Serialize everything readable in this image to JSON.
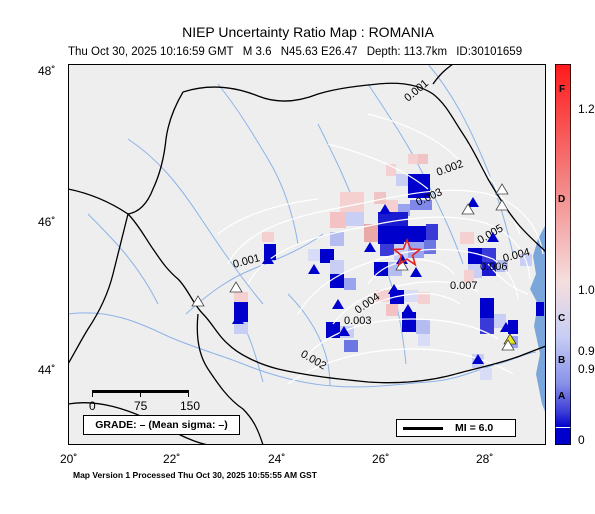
{
  "title": "NIEP Uncertainty Ratio Map : ROMANIA",
  "event": {
    "datetime": "Thu Oct 30, 2025 10:16:59 GMT",
    "magnitude": "M 3.6",
    "location": "N45.63 E26.47",
    "depth": "Depth: 113.7km",
    "id": "ID:30101659"
  },
  "axes": {
    "lat_labels": [
      "48˚",
      "46˚",
      "44˚"
    ],
    "lon_labels": [
      "20˚",
      "22˚",
      "24˚",
      "26˚",
      "28˚"
    ]
  },
  "contours": [
    "0.001",
    "0.002",
    "0.003",
    "0.005",
    "0.004",
    "0.007",
    "0.006",
    "0.004",
    "0.003",
    "0.002",
    "0.001"
  ],
  "scale_bar": {
    "ticks": [
      "0",
      "75",
      "150"
    ]
  },
  "grade_box": "GRADE: – (Mean sigma: –)",
  "mi_box": "MI = 6.0",
  "footer": "Map Version 1 Processed Thu Oct 30, 2025 10:55:55 AM GST",
  "colorbar": {
    "labels": [
      "1.2",
      "1.0",
      "0.9",
      "0.9",
      "0"
    ],
    "grades": [
      "F",
      "D",
      "C",
      "B",
      "A"
    ]
  },
  "colors": {
    "land": "#eeeeee",
    "sea": "#7aa6dc",
    "river": "#8db3e8",
    "strong_blue": "#0000cc",
    "light_red": "#f4c2c2",
    "epicenter": "#e52222"
  }
}
